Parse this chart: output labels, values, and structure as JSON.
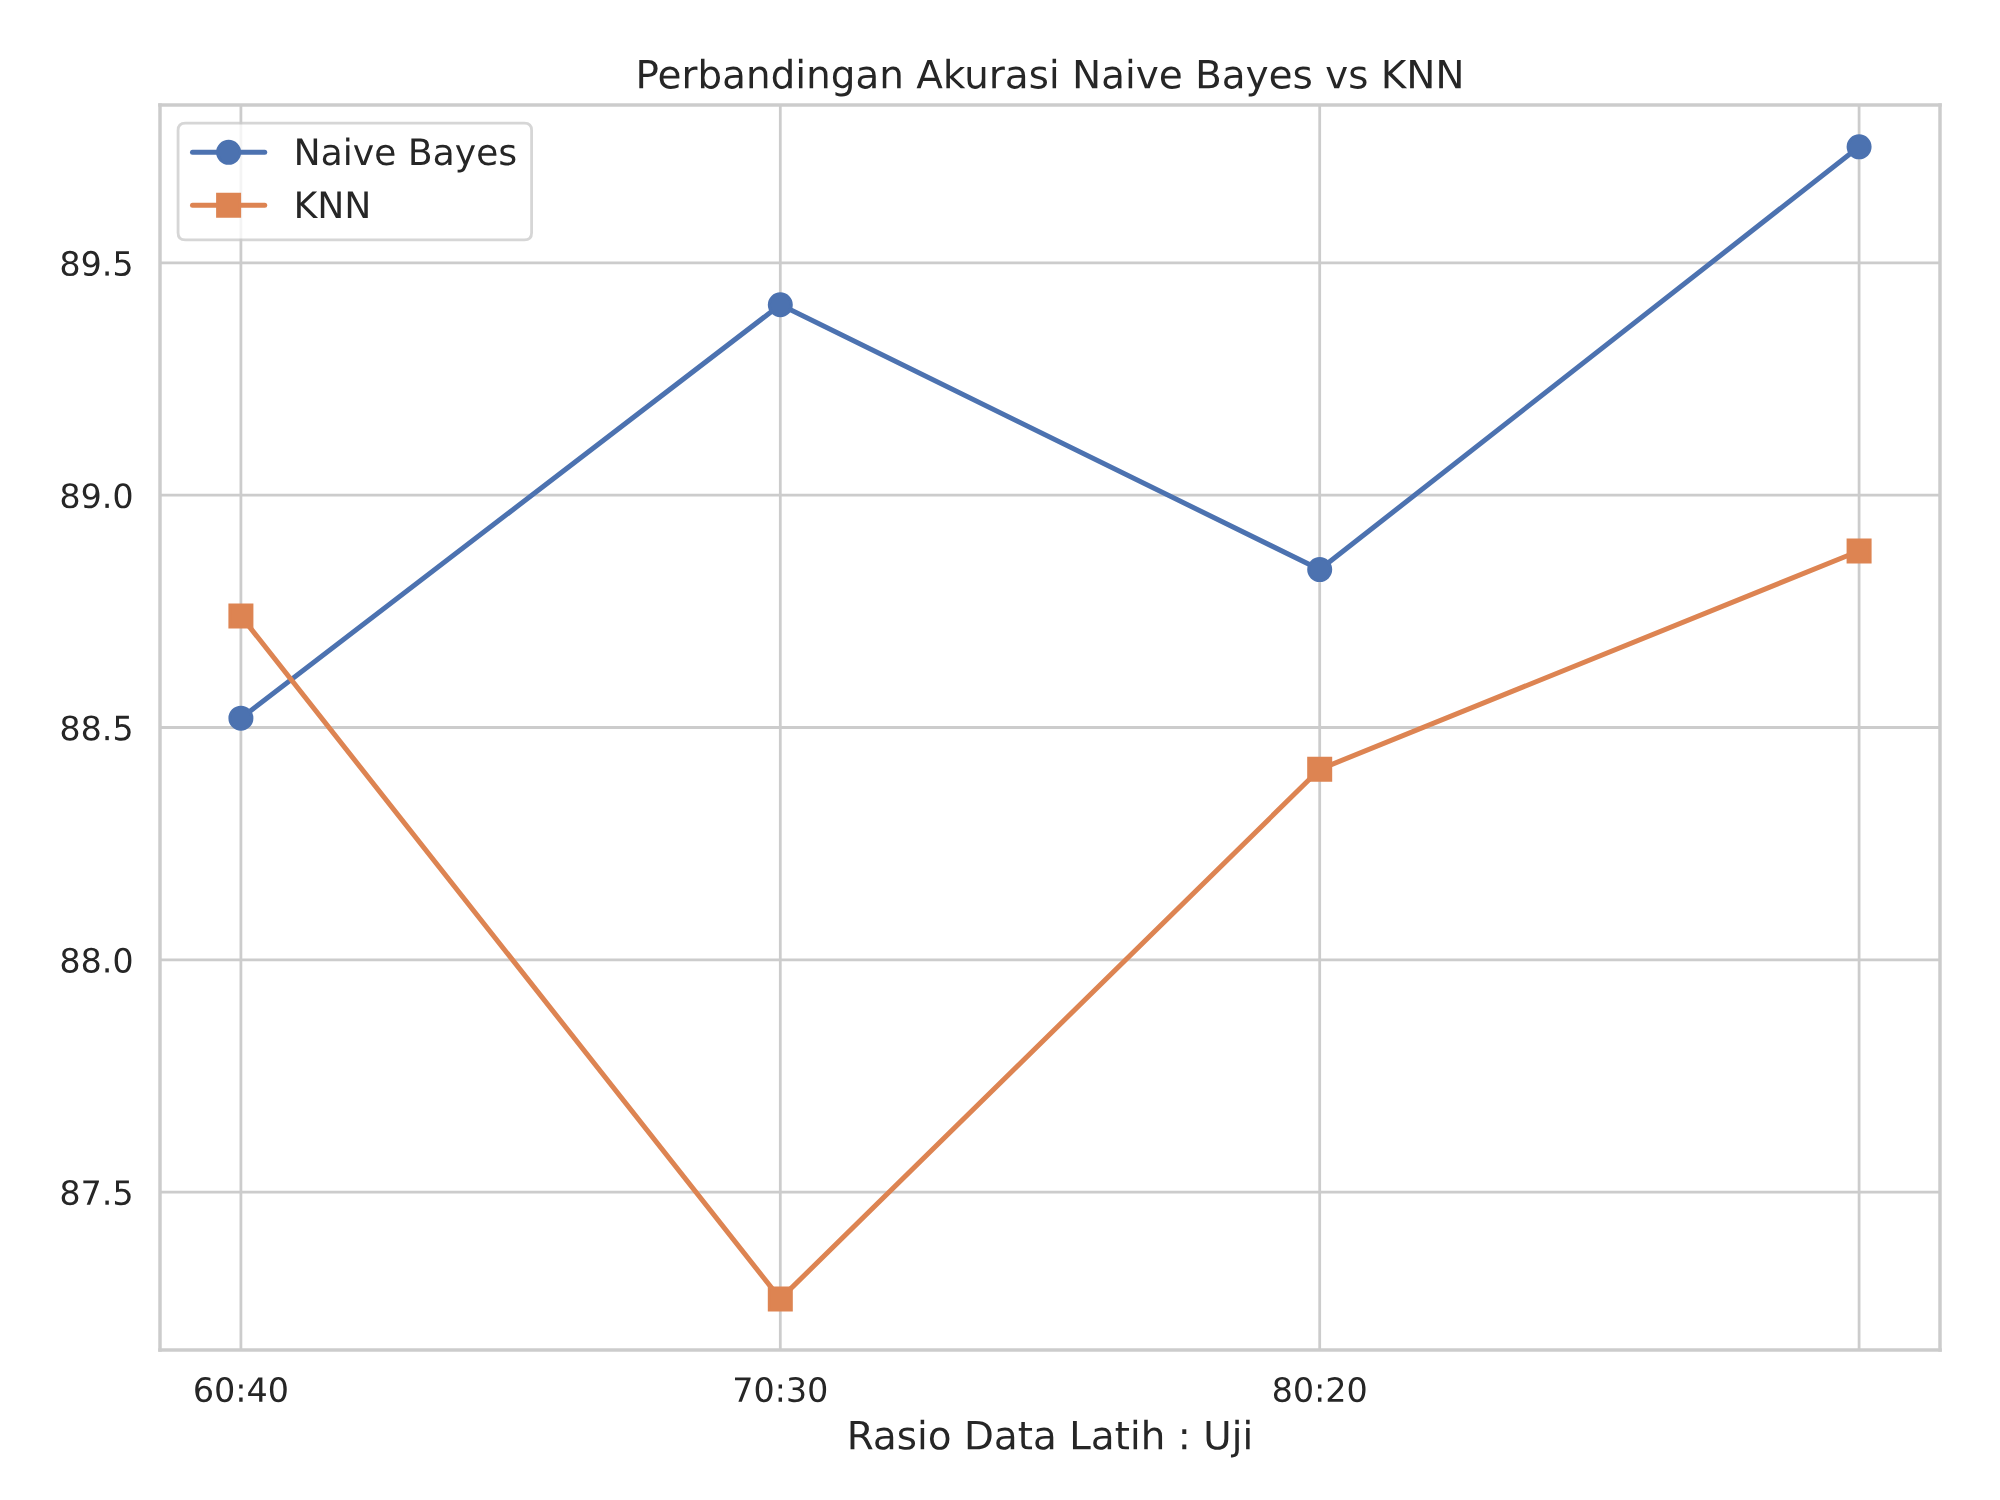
{
  "chart_data": {
    "type": "line",
    "title": "Perbandingan Akurasi Naive Bayes vs KNN",
    "xlabel": "Rasio Data Latih : Uji",
    "categories": [
      "60:40",
      "70:30",
      "80:20",
      null
    ],
    "series": [
      {
        "name": "Naive Bayes",
        "color": "#4c72b0",
        "values": [
          88.52,
          89.41,
          88.84,
          89.75
        ],
        "marker": "circle"
      },
      {
        "name": "KNN",
        "color": "#dd8452",
        "values": [
          88.74,
          87.27,
          88.41,
          88.88
        ],
        "marker": "square"
      }
    ],
    "ylim": [
      87.16,
      89.84
    ],
    "yticks": [
      87.5,
      {
        "value": 88,
        "label": "88.0"
      },
      88.5,
      {
        "value": 89,
        "label": "89.0"
      },
      89.5
    ],
    "grid": true,
    "legend": "top left",
    "line_style": "solid"
  }
}
